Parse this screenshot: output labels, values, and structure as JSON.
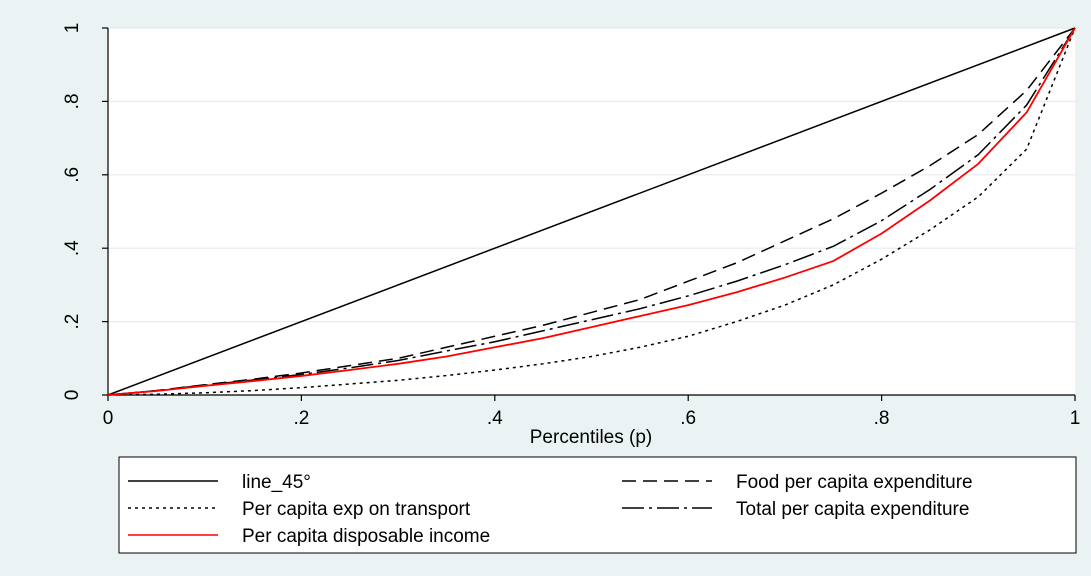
{
  "chart_data": {
    "type": "line",
    "xlabel": "Percentiles (p)",
    "ylabel": "",
    "xlim": [
      0,
      1
    ],
    "ylim": [
      0,
      1
    ],
    "x_ticks": [
      0,
      0.2,
      0.4,
      0.6,
      0.8,
      1
    ],
    "x_tick_labels": [
      "0",
      ".2",
      ".4",
      ".6",
      ".8",
      "1"
    ],
    "y_ticks": [
      0,
      0.2,
      0.4,
      0.6,
      0.8,
      1
    ],
    "y_tick_labels": [
      "0",
      ".2",
      ".4",
      ".6",
      ".8",
      "1"
    ],
    "grid": "horizontal",
    "legend_position": "bottom",
    "background_color": "#eaf2f3",
    "plot_color": "#ffffff",
    "series": [
      {
        "name": "line_45°",
        "color": "#000000",
        "style": "solid",
        "x": [
          0,
          1
        ],
        "y": [
          0,
          1
        ]
      },
      {
        "name": "Food per capita expenditure",
        "color": "#000000",
        "style": "dashed",
        "x": [
          0,
          0.05,
          0.1,
          0.15,
          0.2,
          0.25,
          0.3,
          0.35,
          0.4,
          0.45,
          0.5,
          0.55,
          0.6,
          0.65,
          0.7,
          0.75,
          0.8,
          0.85,
          0.9,
          0.95,
          1
        ],
        "y": [
          0,
          0.012,
          0.028,
          0.043,
          0.06,
          0.08,
          0.1,
          0.13,
          0.16,
          0.19,
          0.225,
          0.26,
          0.31,
          0.36,
          0.42,
          0.48,
          0.55,
          0.625,
          0.71,
          0.83,
          1
        ]
      },
      {
        "name": "Per capita exp on transport",
        "color": "#000000",
        "style": "dotted",
        "x": [
          0,
          0.05,
          0.1,
          0.15,
          0.2,
          0.25,
          0.3,
          0.35,
          0.4,
          0.45,
          0.5,
          0.55,
          0.6,
          0.65,
          0.7,
          0.75,
          0.8,
          0.85,
          0.9,
          0.95,
          1
        ],
        "y": [
          0,
          0.002,
          0.006,
          0.012,
          0.02,
          0.03,
          0.04,
          0.053,
          0.068,
          0.085,
          0.105,
          0.13,
          0.16,
          0.2,
          0.245,
          0.3,
          0.37,
          0.45,
          0.54,
          0.67,
          1
        ]
      },
      {
        "name": "Total per capita expenditure",
        "color": "#000000",
        "style": "longdash-dot",
        "x": [
          0,
          0.05,
          0.1,
          0.15,
          0.2,
          0.25,
          0.3,
          0.35,
          0.4,
          0.45,
          0.5,
          0.55,
          0.6,
          0.65,
          0.7,
          0.75,
          0.8,
          0.85,
          0.9,
          0.95,
          1
        ],
        "y": [
          0,
          0.012,
          0.027,
          0.041,
          0.056,
          0.074,
          0.094,
          0.12,
          0.145,
          0.175,
          0.205,
          0.235,
          0.27,
          0.31,
          0.355,
          0.405,
          0.475,
          0.56,
          0.655,
          0.79,
          1
        ]
      },
      {
        "name": "Per capita disposable income",
        "color": "#ff0000",
        "style": "solid",
        "x": [
          0,
          0.05,
          0.1,
          0.15,
          0.2,
          0.25,
          0.3,
          0.35,
          0.4,
          0.45,
          0.5,
          0.55,
          0.6,
          0.65,
          0.7,
          0.75,
          0.8,
          0.85,
          0.9,
          0.95,
          1
        ],
        "y": [
          0,
          0.011,
          0.025,
          0.038,
          0.052,
          0.068,
          0.085,
          0.105,
          0.13,
          0.155,
          0.185,
          0.215,
          0.245,
          0.28,
          0.32,
          0.365,
          0.44,
          0.53,
          0.63,
          0.77,
          1
        ]
      }
    ]
  }
}
